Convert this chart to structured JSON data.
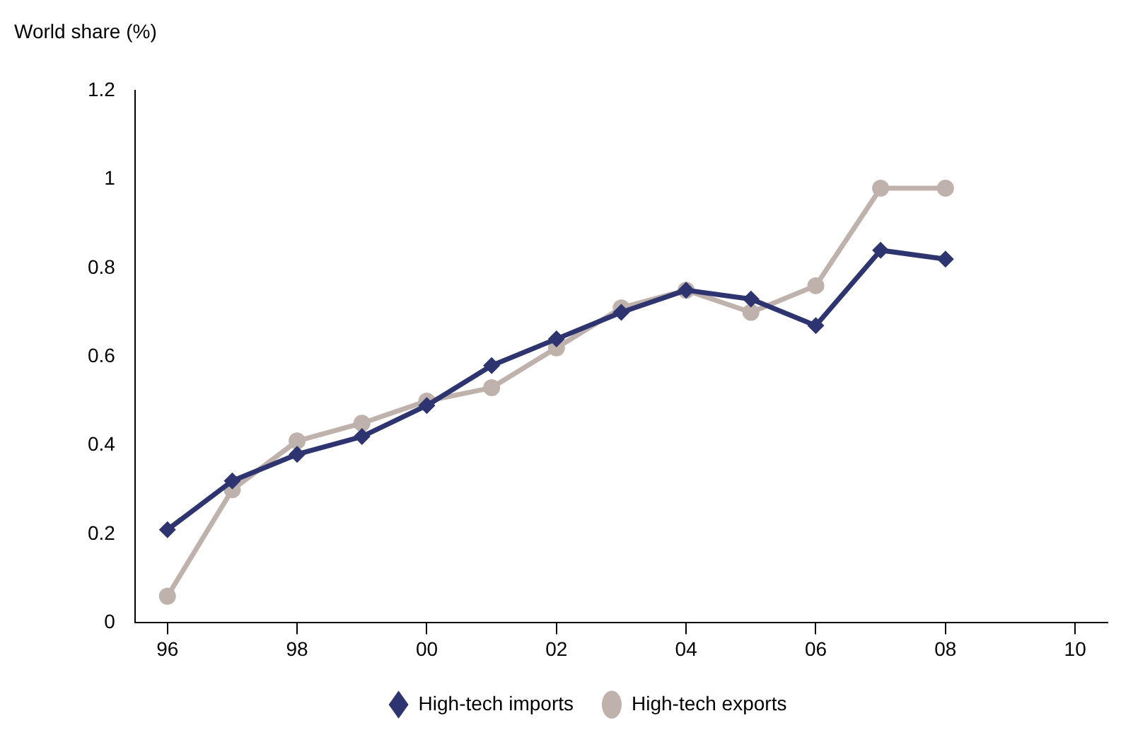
{
  "chart_data": {
    "type": "line",
    "ylabel": "World share (%)",
    "x": [
      1996,
      1997,
      1998,
      1999,
      2000,
      2001,
      2002,
      2003,
      2004,
      2005,
      2006,
      2007,
      2008
    ],
    "series": [
      {
        "name": "High-tech exports",
        "color": "#bfb1ab",
        "marker": "circle",
        "values": [
          0.06,
          0.3,
          0.41,
          0.45,
          0.5,
          0.53,
          0.62,
          0.71,
          0.75,
          0.7,
          0.76,
          0.98,
          0.98
        ]
      },
      {
        "name": "High-tech imports",
        "color": "#2e3470",
        "marker": "diamond",
        "values": [
          0.21,
          0.32,
          0.38,
          0.42,
          0.49,
          0.58,
          0.64,
          0.7,
          0.75,
          0.73,
          0.67,
          0.84,
          0.82
        ]
      }
    ],
    "xlim": [
      1995.5,
      2010.5
    ],
    "xticks": [
      {
        "value": 1996,
        "label": "96"
      },
      {
        "value": 1998,
        "label": "98"
      },
      {
        "value": 2000,
        "label": "00"
      },
      {
        "value": 2002,
        "label": "02"
      },
      {
        "value": 2004,
        "label": "04"
      },
      {
        "value": 2006,
        "label": "06"
      },
      {
        "value": 2008,
        "label": "08"
      },
      {
        "value": 2010,
        "label": "10"
      }
    ],
    "ylim": [
      0,
      1.2
    ],
    "yticks": [
      0,
      0.2,
      0.4,
      0.6,
      0.8,
      1,
      1.2
    ],
    "grid": false,
    "legend": "bottom"
  }
}
